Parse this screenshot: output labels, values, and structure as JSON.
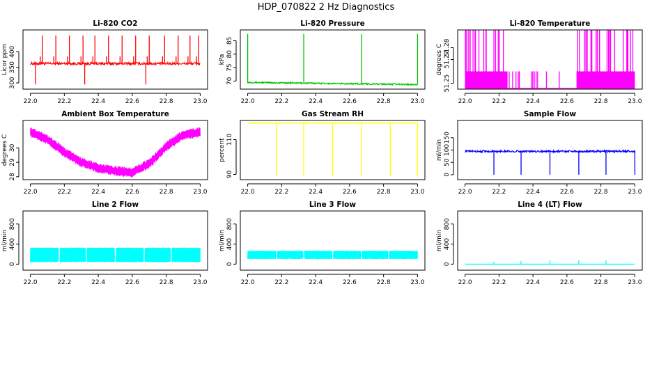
{
  "figure": {
    "title": "HDP_070822  2 Hz Diagnostics"
  },
  "chart_data": [
    {
      "type": "line",
      "title": "Li-820 CO2",
      "xlabel": "",
      "ylabel": "Licor ppm",
      "x_range": [
        22.0,
        23.0
      ],
      "ylim": [
        280,
        470
      ],
      "xticks": [
        22.0,
        22.2,
        22.4,
        22.6,
        22.8,
        23.0
      ],
      "xtick_labels": [
        "22.0",
        "22.2",
        "22.4",
        "22.6",
        "22.8",
        "23.0"
      ],
      "yticks": [
        300,
        350,
        400
      ],
      "ytick_labels": [
        "300",
        "350",
        "400"
      ],
      "color": "#ff0000",
      "series": [
        {
          "baseline": 362,
          "noise": 4,
          "spikes_high": [
            22.07,
            22.15,
            22.23,
            22.31,
            22.38,
            22.46,
            22.54,
            22.62,
            22.7,
            22.79,
            22.87,
            22.94,
            22.99
          ],
          "spike_high_value": 452,
          "spikes_low": [
            22.03,
            22.32,
            22.68
          ],
          "spike_low_value": 295
        }
      ]
    },
    {
      "type": "line",
      "title": "Li-820 Pressure",
      "xlabel": "",
      "ylabel": "kPa",
      "x_range": [
        22.0,
        23.0
      ],
      "ylim": [
        67,
        89
      ],
      "xticks": [
        22.0,
        22.2,
        22.4,
        22.6,
        22.8,
        23.0
      ],
      "xtick_labels": [
        "22.0",
        "22.2",
        "22.4",
        "22.6",
        "22.8",
        "23.0"
      ],
      "yticks": [
        70,
        75,
        80,
        85
      ],
      "ytick_labels": [
        "70",
        "75",
        "80",
        "85"
      ],
      "color": "#00c000",
      "series": [
        {
          "baseline_start": 69.5,
          "baseline_end": 68.7,
          "noise": 0.25,
          "spikes_high": [
            22.0,
            22.33,
            22.67,
            23.0
          ],
          "spike_high_value": 87.5
        }
      ]
    },
    {
      "type": "line",
      "title": "Li-820 Temperature",
      "xlabel": "",
      "ylabel": "degrees C",
      "x_range": [
        22.0,
        23.0
      ],
      "ylim": [
        51.245,
        51.295
      ],
      "xticks": [
        22.0,
        22.2,
        22.4,
        22.6,
        22.8,
        23.0
      ],
      "xtick_labels": [
        "22.0",
        "22.2",
        "22.4",
        "22.6",
        "22.8",
        "23.0"
      ],
      "yticks": [
        51.25,
        51.27,
        51.28
      ],
      "ytick_labels": [
        "51.25",
        "51.27",
        "51.28"
      ],
      "color": "#ff00ff",
      "series": [
        {
          "low": 51.245,
          "mid": 51.26,
          "high": 51.2965,
          "dense_ranges": [
            [
              22.0,
              22.25
            ],
            [
              22.66,
              23.0
            ]
          ]
        }
      ]
    },
    {
      "type": "line",
      "title": "Ambient Box Temperature",
      "xlabel": "",
      "ylabel": "degrees C",
      "x_range": [
        22.0,
        23.0
      ],
      "ylim": [
        27.8,
        31.9
      ],
      "xticks": [
        22.0,
        22.2,
        22.4,
        22.6,
        22.8,
        23.0
      ],
      "xtick_labels": [
        "22.0",
        "22.2",
        "22.4",
        "22.6",
        "22.8",
        "23.0"
      ],
      "yticks": [
        28,
        29,
        30
      ],
      "ytick_labels": [
        "28",
        "29",
        "30"
      ],
      "color": "#ff00ff",
      "series": [
        {
          "x": [
            22.0,
            22.1,
            22.2,
            22.3,
            22.4,
            22.5,
            22.6,
            22.7,
            22.8,
            22.9,
            23.0
          ],
          "y": [
            31.1,
            30.6,
            29.7,
            29.0,
            28.6,
            28.4,
            28.3,
            28.9,
            30.1,
            30.9,
            31.1
          ],
          "band": 0.35
        }
      ]
    },
    {
      "type": "line",
      "title": "Gas Stream RH",
      "xlabel": "",
      "ylabel": "percent",
      "x_range": [
        22.0,
        23.0
      ],
      "ylim": [
        87,
        121
      ],
      "xticks": [
        22.0,
        22.2,
        22.4,
        22.6,
        22.8,
        23.0
      ],
      "xtick_labels": [
        "22.0",
        "22.2",
        "22.4",
        "22.6",
        "22.8",
        "23.0"
      ],
      "yticks": [
        90,
        110
      ],
      "ytick_labels": [
        "90",
        "110"
      ],
      "color": "#ffff00",
      "series": [
        {
          "baseline": 119.5,
          "noise": 0.2,
          "spikes_low": [
            22.17,
            22.33,
            22.5,
            22.67,
            22.84,
            23.0
          ],
          "spike_low_value": 89
        }
      ]
    },
    {
      "type": "line",
      "title": "Sample Flow",
      "xlabel": "",
      "ylabel": "ml/min",
      "x_range": [
        22.0,
        23.0
      ],
      "ylim": [
        -20,
        220
      ],
      "xticks": [
        22.0,
        22.2,
        22.4,
        22.6,
        22.8,
        23.0
      ],
      "xtick_labels": [
        "22.0",
        "22.2",
        "22.4",
        "22.6",
        "22.8",
        "23.0"
      ],
      "yticks": [
        0,
        50,
        100,
        150
      ],
      "ytick_labels": [
        "0",
        "50",
        "100",
        "150"
      ],
      "color": "#0000ff",
      "series": [
        {
          "baseline": 95,
          "noise": 4,
          "spikes_low": [
            22.17,
            22.33,
            22.5,
            22.67,
            22.83,
            23.0
          ],
          "spike_low_value": 0
        }
      ]
    },
    {
      "type": "line",
      "title": "Line 2 Flow",
      "xlabel": "",
      "ylabel": "ml/min",
      "x_range": [
        22.0,
        23.0
      ],
      "ylim": [
        -120,
        1060
      ],
      "xticks": [
        22.0,
        22.2,
        22.4,
        22.6,
        22.8,
        23.0
      ],
      "xtick_labels": [
        "22.0",
        "22.2",
        "22.4",
        "22.6",
        "22.8",
        "23.0"
      ],
      "yticks": [
        0,
        400,
        800
      ],
      "ytick_labels": [
        "0",
        "400",
        "800"
      ],
      "color": "#00ffff",
      "series": [
        {
          "band_low": 40,
          "band_high": 330,
          "gaps": [
            22.17,
            22.33,
            22.5,
            22.67,
            22.83
          ]
        }
      ]
    },
    {
      "type": "line",
      "title": "Line 3 Flow",
      "xlabel": "",
      "ylabel": "ml/min",
      "x_range": [
        22.0,
        23.0
      ],
      "ylim": [
        -120,
        1060
      ],
      "xticks": [
        22.0,
        22.2,
        22.4,
        22.6,
        22.8,
        23.0
      ],
      "xtick_labels": [
        "22.0",
        "22.2",
        "22.4",
        "22.6",
        "22.8",
        "23.0"
      ],
      "yticks": [
        0,
        400,
        800
      ],
      "ytick_labels": [
        "0",
        "400",
        "800"
      ],
      "color": "#00ffff",
      "series": [
        {
          "band_low": 100,
          "band_high": 270,
          "gaps": [
            22.17,
            22.33,
            22.5,
            22.67,
            22.83
          ]
        }
      ]
    },
    {
      "type": "line",
      "title": "Line 4 (LT) Flow",
      "xlabel": "",
      "ylabel": "ml/min",
      "x_range": [
        22.0,
        23.0
      ],
      "ylim": [
        -120,
        1060
      ],
      "xticks": [
        22.0,
        22.2,
        22.4,
        22.6,
        22.8,
        23.0
      ],
      "xtick_labels": [
        "22.0",
        "22.2",
        "22.4",
        "22.6",
        "22.8",
        "23.0"
      ],
      "yticks": [
        0,
        400,
        800
      ],
      "ytick_labels": [
        "0",
        "400",
        "800"
      ],
      "color": "#00ffff",
      "series": [
        {
          "baseline": 0,
          "spikes_high": [
            22.17,
            22.33,
            22.5,
            22.67,
            22.83
          ],
          "spike_high_value": 60
        }
      ]
    }
  ]
}
